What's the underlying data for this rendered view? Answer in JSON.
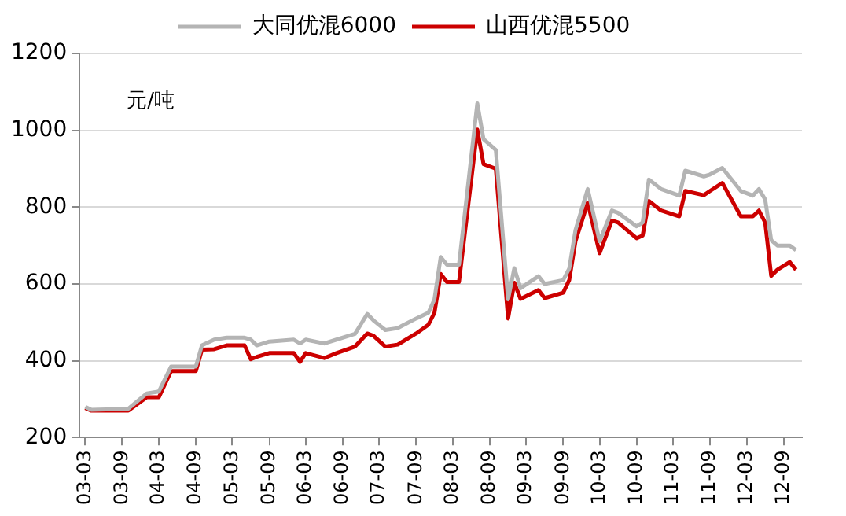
{
  "chart_data": {
    "type": "line",
    "annotations": [
      "元/吨"
    ],
    "x": [
      "2003-03",
      "2003-04",
      "2003-10",
      "2004-01",
      "2004-03",
      "2004-05",
      "2004-09",
      "2004-10",
      "2004-12",
      "2005-02",
      "2005-05",
      "2005-06",
      "2005-07",
      "2005-09",
      "2006-01",
      "2006-02",
      "2006-03",
      "2006-06",
      "2006-08",
      "2006-11",
      "2007-01",
      "2007-02",
      "2007-04",
      "2007-06",
      "2007-09",
      "2007-11",
      "2007-12",
      "2008-01",
      "2008-02",
      "2008-04",
      "2008-07",
      "2008-08",
      "2008-10",
      "2008-12",
      "2009-01",
      "2009-02",
      "2009-05",
      "2009-06",
      "2009-09",
      "2009-10",
      "2009-11",
      "2010-01",
      "2010-03",
      "2010-05",
      "2010-06",
      "2010-09",
      "2010-10",
      "2010-11",
      "2011-01",
      "2011-04",
      "2011-05",
      "2011-08",
      "2011-09",
      "2011-11",
      "2012-02",
      "2012-04",
      "2012-05",
      "2012-06",
      "2012-07",
      "2012-08",
      "2012-10",
      "2012-11"
    ],
    "series": [
      {
        "name": "大同优混6000",
        "color": "#b4b4b4",
        "values": [
          280,
          272,
          275,
          315,
          320,
          385,
          385,
          440,
          455,
          460,
          460,
          455,
          440,
          450,
          455,
          445,
          455,
          445,
          455,
          470,
          522,
          505,
          480,
          485,
          510,
          525,
          560,
          670,
          650,
          650,
          1070,
          977,
          949,
          560,
          641,
          589,
          620,
          600,
          610,
          640,
          740,
          847,
          711,
          791,
          785,
          750,
          760,
          872,
          847,
          830,
          895,
          880,
          885,
          902,
          842,
          830,
          847,
          820,
          714,
          700,
          700,
          688
        ]
      },
      {
        "name": "山西优混5500",
        "color": "#cc0000",
        "values": [
          277,
          270,
          270,
          305,
          305,
          373,
          373,
          429,
          430,
          440,
          440,
          404,
          410,
          420,
          420,
          397,
          420,
          407,
          420,
          437,
          471,
          465,
          437,
          442,
          471,
          494,
          525,
          626,
          605,
          605,
          1002,
          912,
          900,
          510,
          603,
          561,
          584,
          563,
          577,
          610,
          711,
          812,
          680,
          765,
          760,
          719,
          726,
          816,
          791,
          776,
          842,
          831,
          842,
          863,
          776,
          776,
          791,
          760,
          621,
          637,
          657,
          637
        ]
      }
    ],
    "xlim": [
      "2003-02",
      "2012-12"
    ],
    "xticks": [
      {
        "value": "2003-03",
        "label": "03-03"
      },
      {
        "value": "2003-09",
        "label": "03-09"
      },
      {
        "value": "2004-03",
        "label": "04-03"
      },
      {
        "value": "2004-09",
        "label": "04-09"
      },
      {
        "value": "2005-03",
        "label": "05-03"
      },
      {
        "value": "2005-09",
        "label": "05-09"
      },
      {
        "value": "2006-03",
        "label": "06-03"
      },
      {
        "value": "2006-09",
        "label": "06-09"
      },
      {
        "value": "2007-03",
        "label": "07-03"
      },
      {
        "value": "2007-09",
        "label": "07-09"
      },
      {
        "value": "2008-03",
        "label": "08-03"
      },
      {
        "value": "2008-09",
        "label": "08-09"
      },
      {
        "value": "2009-03",
        "label": "09-03"
      },
      {
        "value": "2009-09",
        "label": "09-09"
      },
      {
        "value": "2010-03",
        "label": "10-03"
      },
      {
        "value": "2010-09",
        "label": "10-09"
      },
      {
        "value": "2011-03",
        "label": "11-03"
      },
      {
        "value": "2011-09",
        "label": "11-09"
      },
      {
        "value": "2012-03",
        "label": "12-03"
      },
      {
        "value": "2012-09",
        "label": "12-09"
      }
    ],
    "ylim": [
      200,
      1200
    ],
    "yticks": [
      200,
      400,
      600,
      800,
      1000,
      1200
    ],
    "grid": "y",
    "legend": "top",
    "marker": "none",
    "line_style": "solid"
  }
}
